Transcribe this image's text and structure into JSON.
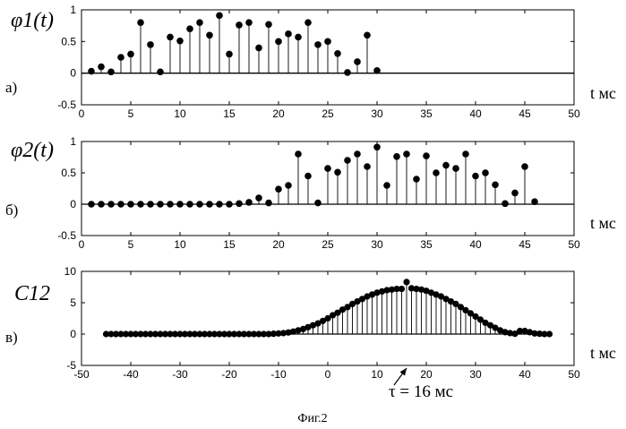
{
  "caption": "Фиг.2",
  "chart_data": [
    {
      "type": "stem",
      "panel_label": "а)",
      "ylabel": "φ1(t)",
      "xlabel": "t мс",
      "xlim": [
        0,
        50
      ],
      "ylim": [
        -0.5,
        1
      ],
      "xticks": [
        0,
        5,
        10,
        15,
        20,
        25,
        30,
        35,
        40,
        45,
        50
      ],
      "yticks": [
        -0.5,
        0,
        0.5,
        1
      ],
      "zero_line_range": [
        0,
        50
      ],
      "x": [
        1,
        2,
        3,
        4,
        5,
        6,
        7,
        8,
        9,
        10,
        11,
        12,
        13,
        14,
        15,
        16,
        17,
        18,
        19,
        20,
        21,
        22,
        23,
        24,
        25,
        26,
        27,
        28,
        29,
        30
      ],
      "values": [
        0.03,
        0.1,
        0.02,
        0.25,
        0.3,
        0.8,
        0.45,
        0.02,
        0.57,
        0.51,
        0.7,
        0.8,
        0.6,
        0.91,
        0.3,
        0.76,
        0.8,
        0.4,
        0.77,
        0.5,
        0.62,
        0.57,
        0.8,
        0.45,
        0.5,
        0.31,
        0.01,
        0.18,
        0.6,
        0.04
      ]
    },
    {
      "type": "stem",
      "panel_label": "б)",
      "ylabel": "φ2(t)",
      "xlabel": "t мс",
      "xlim": [
        0,
        50
      ],
      "ylim": [
        -0.5,
        1
      ],
      "xticks": [
        0,
        5,
        10,
        15,
        20,
        25,
        30,
        35,
        40,
        45,
        50
      ],
      "yticks": [
        -0.5,
        0,
        0.5,
        1
      ],
      "zero_line_range": [
        0,
        50
      ],
      "x": [
        1,
        2,
        3,
        4,
        5,
        6,
        7,
        8,
        9,
        10,
        11,
        12,
        13,
        14,
        15,
        16,
        17,
        18,
        19,
        20,
        21,
        22,
        23,
        24,
        25,
        26,
        27,
        28,
        29,
        30,
        31,
        32,
        33,
        34,
        35,
        36,
        37,
        38,
        39,
        40,
        41,
        42,
        43,
        44,
        45,
        46
      ],
      "values": [
        0,
        0,
        0,
        0,
        0,
        0,
        0,
        0,
        0,
        0,
        0,
        0,
        0,
        0,
        0,
        0.01,
        0.03,
        0.1,
        0.02,
        0.24,
        0.3,
        0.8,
        0.45,
        0.02,
        0.57,
        0.51,
        0.7,
        0.8,
        0.6,
        0.91,
        0.3,
        0.76,
        0.8,
        0.4,
        0.77,
        0.5,
        0.62,
        0.57,
        0.8,
        0.45,
        0.5,
        0.31,
        0.01,
        0.18,
        0.6,
        0.04
      ]
    },
    {
      "type": "stem",
      "panel_label": "в)",
      "ylabel": "C12",
      "xlabel": "t мс",
      "xlim": [
        -50,
        50
      ],
      "ylim": [
        -5,
        10
      ],
      "xticks": [
        -50,
        -40,
        -30,
        -20,
        -10,
        0,
        10,
        20,
        30,
        40,
        50
      ],
      "yticks": [
        -5,
        0,
        5,
        10
      ],
      "zero_line_range": [
        -45,
        45
      ],
      "x": [
        -45,
        -44,
        -43,
        -42,
        -41,
        -40,
        -39,
        -38,
        -37,
        -36,
        -35,
        -34,
        -33,
        -32,
        -31,
        -30,
        -29,
        -28,
        -27,
        -26,
        -25,
        -24,
        -23,
        -22,
        -21,
        -20,
        -19,
        -18,
        -17,
        -16,
        -15,
        -14,
        -13,
        -12,
        -11,
        -10,
        -9,
        -8,
        -7,
        -6,
        -5,
        -4,
        -3,
        -2,
        -1,
        0,
        1,
        2,
        3,
        4,
        5,
        6,
        7,
        8,
        9,
        10,
        11,
        12,
        13,
        14,
        15,
        16,
        17,
        18,
        19,
        20,
        21,
        22,
        23,
        24,
        25,
        26,
        27,
        28,
        29,
        30,
        31,
        32,
        33,
        34,
        35,
        36,
        37,
        38,
        39,
        40,
        41,
        42,
        43,
        44,
        45
      ],
      "values": [
        0,
        0,
        0,
        0,
        0,
        0,
        0,
        0,
        0,
        0,
        0,
        0,
        0,
        0,
        0,
        0,
        0,
        0,
        0,
        0,
        0,
        0,
        0,
        0,
        0,
        0,
        0,
        0,
        0,
        0,
        0,
        0,
        0,
        0,
        0.05,
        0.1,
        0.15,
        0.25,
        0.4,
        0.6,
        0.8,
        1.1,
        1.4,
        1.7,
        2.1,
        2.5,
        3.0,
        3.4,
        3.9,
        4.3,
        4.8,
        5.2,
        5.6,
        6.0,
        6.3,
        6.6,
        6.8,
        7.0,
        7.1,
        7.2,
        7.2,
        8.3,
        7.3,
        7.2,
        7.1,
        6.9,
        6.6,
        6.3,
        6.0,
        5.6,
        5.2,
        4.8,
        4.3,
        3.8,
        3.3,
        2.8,
        2.3,
        1.8,
        1.4,
        1.0,
        0.6,
        0.3,
        0.15,
        0.05,
        0.5,
        0.5,
        0.3,
        0.1,
        0.05,
        0,
        0
      ]
    }
  ],
  "annotation": {
    "text": "τ = 16 мс",
    "target_x": 16
  }
}
